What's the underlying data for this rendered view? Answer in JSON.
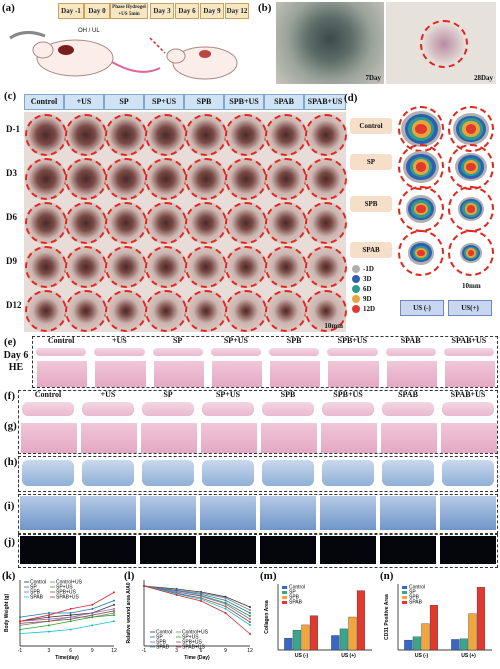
{
  "panel_a": {
    "label": "(a)",
    "timeline": [
      "Day -1",
      "Day 0",
      "Phase Hydrogel +US 5min",
      "Day 3",
      "Day 6",
      "Day 9",
      "Day 12"
    ],
    "agent_label": "OH / UL"
  },
  "panel_b": {
    "label": "(b)",
    "left_caption": "7Day",
    "right_caption": "28Day"
  },
  "panel_c": {
    "label": "(c)",
    "columns": [
      "Control",
      "+US",
      "SP",
      "SP+US",
      "SPB",
      "SPB+US",
      "SPAB",
      "SPAB+US"
    ],
    "rows": [
      "D-1",
      "D3",
      "D6",
      "D9",
      "D12"
    ],
    "scale": "10mm"
  },
  "panel_d": {
    "label": "(d)",
    "groups": [
      "Control",
      "SP",
      "SPB",
      "SPAB"
    ],
    "legend": [
      {
        "day": "-1D",
        "color": "#b0b0b0"
      },
      {
        "day": "3D",
        "color": "#2f5fb3"
      },
      {
        "day": "6D",
        "color": "#2a9d8f"
      },
      {
        "day": "9D",
        "color": "#e8a33a"
      },
      {
        "day": "12D",
        "color": "#e03a2f"
      }
    ],
    "scale": "10mm",
    "buttons": [
      "US (-)",
      "US(+)"
    ]
  },
  "panel_e": {
    "label": "(e)",
    "side": "Day 6 HE",
    "columns": [
      "Control",
      "+US",
      "SP",
      "SP+US",
      "SPB",
      "SPB+US",
      "SPAB",
      "SPAB+US"
    ]
  },
  "panel_f": {
    "label": "(f)",
    "columns": [
      "Control",
      "+US",
      "SP",
      "SP+US",
      "SPB",
      "SPB+US",
      "SPAB",
      "SPAB+US"
    ]
  },
  "panel_g": {
    "label": "(g)"
  },
  "panel_h": {
    "label": "(h)"
  },
  "panel_i": {
    "label": "(i)"
  },
  "panel_j": {
    "label": "(j)"
  },
  "panel_k": {
    "label": "(k)",
    "ylabel": "Body Weight (g)",
    "xlabel": "Time(day)"
  },
  "panel_l": {
    "label": "(l)",
    "ylabel": "Relative wound area A/A0",
    "xlabel": "Time (Day)",
    "xticks": [
      "-1",
      "3",
      "6",
      "9",
      "12"
    ]
  },
  "panel_m": {
    "label": "(m)",
    "ylabel": "Collagen Area",
    "xticks": [
      "US (-)",
      "US (+)"
    ]
  },
  "panel_n": {
    "label": "(n)",
    "ylabel": "CD31 Positive Area",
    "xticks": [
      "US (-)",
      "US (+)"
    ]
  },
  "chart_data": [
    {
      "type": "line",
      "title": "(k)",
      "xlabel": "Time(day)",
      "ylabel": "Body Weight (g)",
      "x": [
        -1,
        3,
        6,
        9,
        12
      ],
      "series": [
        {
          "name": "Control",
          "values": [
            20,
            21,
            21.5,
            22,
            24
          ]
        },
        {
          "name": "Control+US",
          "values": [
            19,
            20,
            21,
            21,
            22
          ]
        },
        {
          "name": "SP",
          "values": [
            21,
            22,
            22,
            23,
            25
          ]
        },
        {
          "name": "SP+US",
          "values": [
            18,
            19,
            20,
            21,
            21.5
          ]
        },
        {
          "name": "SPB",
          "values": [
            20,
            20.5,
            21,
            22,
            23
          ]
        },
        {
          "name": "SPB+US",
          "values": [
            19.5,
            20,
            20.5,
            21.5,
            22.5
          ]
        },
        {
          "name": "SPAB",
          "values": [
            17,
            17.5,
            18,
            19,
            20
          ]
        },
        {
          "name": "SPAB+US",
          "values": [
            20,
            21.5,
            23,
            24,
            27
          ]
        }
      ]
    },
    {
      "type": "line",
      "title": "(l)",
      "xlabel": "Time (Day)",
      "ylabel": "Relative wound area A/A0",
      "x": [
        -1,
        3,
        6,
        9,
        12
      ],
      "series": [
        {
          "name": "Control",
          "values": [
            1.0,
            0.95,
            0.9,
            0.82,
            0.65
          ]
        },
        {
          "name": "Control+US",
          "values": [
            1.0,
            0.93,
            0.88,
            0.8,
            0.6
          ]
        },
        {
          "name": "SP",
          "values": [
            1.0,
            0.92,
            0.86,
            0.76,
            0.55
          ]
        },
        {
          "name": "SP+US",
          "values": [
            1.0,
            0.9,
            0.84,
            0.72,
            0.5
          ]
        },
        {
          "name": "SPB",
          "values": [
            1.0,
            0.9,
            0.83,
            0.7,
            0.45
          ]
        },
        {
          "name": "SPB+US",
          "values": [
            1.0,
            0.88,
            0.8,
            0.66,
            0.4
          ]
        },
        {
          "name": "SPAB",
          "values": [
            1.0,
            0.87,
            0.78,
            0.62,
            0.35
          ]
        },
        {
          "name": "SPAB+US",
          "values": [
            1.0,
            0.85,
            0.75,
            0.55,
            0.2
          ]
        }
      ]
    },
    {
      "type": "bar",
      "title": "(m)",
      "ylabel": "Collagen Area",
      "categories": [
        "US (-)",
        "US (+)"
      ],
      "series": [
        {
          "name": "Control",
          "values": [
            0.18,
            0.22
          ]
        },
        {
          "name": "SP",
          "values": [
            0.3,
            0.32
          ]
        },
        {
          "name": "SPB",
          "values": [
            0.38,
            0.5
          ]
        },
        {
          "name": "SPAB",
          "values": [
            0.52,
            0.9
          ]
        }
      ]
    },
    {
      "type": "bar",
      "title": "(n)",
      "ylabel": "CD31 Positive Area",
      "categories": [
        "US (-)",
        "US (+)"
      ],
      "series": [
        {
          "name": "Control",
          "values": [
            0.15,
            0.16
          ]
        },
        {
          "name": "SP",
          "values": [
            0.2,
            0.17
          ]
        },
        {
          "name": "SPB",
          "values": [
            0.4,
            0.55
          ]
        },
        {
          "name": "SPAB",
          "values": [
            0.68,
            0.95
          ]
        }
      ]
    }
  ]
}
